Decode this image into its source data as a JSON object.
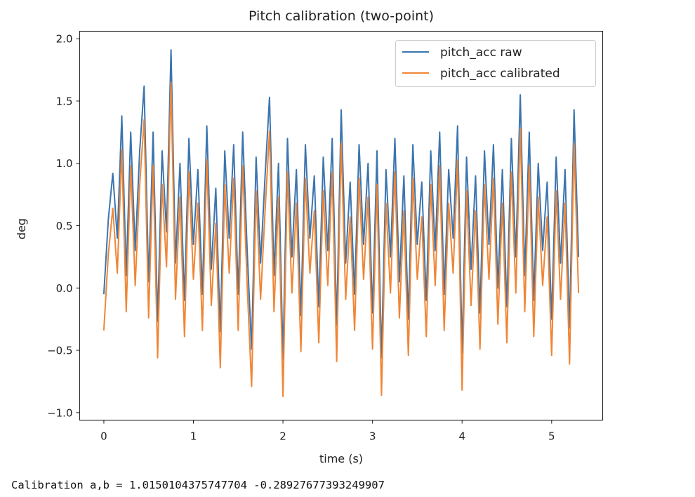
{
  "chart_data": {
    "type": "line",
    "title": "Pitch calibration (two-point)",
    "xlabel": "time (s)",
    "ylabel": "deg",
    "xlim": [
      -0.27,
      5.57
    ],
    "ylim": [
      -1.06,
      2.06
    ],
    "xticks": [
      0,
      1,
      2,
      3,
      4,
      5
    ],
    "xtick_labels": [
      "0",
      "1",
      "2",
      "3",
      "4",
      "5"
    ],
    "yticks": [
      -1.0,
      -0.5,
      0.0,
      0.5,
      1.0,
      1.5,
      2.0
    ],
    "ytick_labels": [
      "−1.0",
      "−0.5",
      "0.0",
      "0.5",
      "1.0",
      "1.5",
      "2.0"
    ],
    "grid": false,
    "legend_position": "top-right",
    "x_start": 0,
    "x_step": 0.05,
    "series": [
      {
        "name": "pitch_acc raw",
        "color": "#3b75af",
        "values": [
          -0.05,
          0.55,
          0.92,
          0.4,
          1.38,
          0.1,
          1.25,
          0.3,
          1.1,
          1.62,
          0.05,
          1.25,
          -0.27,
          1.1,
          0.45,
          1.91,
          0.2,
          1.0,
          -0.1,
          1.2,
          0.35,
          0.95,
          -0.05,
          1.3,
          0.15,
          0.8,
          -0.35,
          1.1,
          0.4,
          1.15,
          -0.05,
          1.25,
          0.3,
          -0.49,
          1.05,
          0.2,
          0.9,
          1.53,
          0.1,
          1.0,
          -0.57,
          1.2,
          0.25,
          0.95,
          -0.22,
          1.15,
          0.4,
          0.9,
          -0.15,
          1.05,
          0.3,
          1.2,
          -0.3,
          1.43,
          0.2,
          0.85,
          -0.05,
          1.15,
          0.35,
          1.0,
          -0.2,
          1.1,
          -0.56,
          0.95,
          0.25,
          1.2,
          0.05,
          0.9,
          -0.25,
          1.15,
          0.35,
          0.85,
          -0.1,
          1.1,
          0.3,
          1.25,
          -0.05,
          0.95,
          0.4,
          1.3,
          -0.52,
          1.05,
          0.15,
          0.9,
          -0.2,
          1.1,
          0.35,
          1.15,
          0.0,
          0.95,
          -0.15,
          1.2,
          0.25,
          1.55,
          0.1,
          1.25,
          -0.1,
          1.0,
          0.3,
          0.85,
          -0.25,
          1.05,
          0.2,
          0.95,
          -0.32,
          1.43,
          0.25
        ]
      },
      {
        "name": "pitch_acc calibrated",
        "color": "#ef8636",
        "values": [
          -0.34,
          0.27,
          0.64,
          0.12,
          1.11,
          -0.19,
          0.98,
          0.02,
          0.83,
          1.35,
          -0.24,
          0.98,
          -0.56,
          0.83,
          0.17,
          1.65,
          -0.09,
          0.73,
          -0.39,
          0.93,
          0.07,
          0.68,
          -0.34,
          1.03,
          -0.14,
          0.52,
          -0.64,
          0.83,
          0.12,
          0.88,
          -0.34,
          0.98,
          0.02,
          -0.79,
          0.78,
          -0.09,
          0.62,
          1.26,
          -0.19,
          0.73,
          -0.87,
          0.93,
          -0.04,
          0.68,
          -0.51,
          0.88,
          0.12,
          0.62,
          -0.44,
          0.78,
          0.02,
          0.93,
          -0.59,
          1.16,
          -0.09,
          0.57,
          -0.34,
          0.88,
          0.07,
          0.73,
          -0.49,
          0.83,
          -0.86,
          0.68,
          -0.04,
          0.93,
          -0.24,
          0.62,
          -0.54,
          0.88,
          0.07,
          0.57,
          -0.39,
          0.83,
          0.02,
          0.98,
          -0.34,
          0.68,
          0.12,
          1.03,
          -0.82,
          0.78,
          -0.14,
          0.62,
          -0.49,
          0.83,
          0.07,
          0.88,
          -0.29,
          0.68,
          -0.44,
          0.93,
          -0.04,
          1.28,
          -0.19,
          0.98,
          -0.39,
          0.73,
          0.02,
          0.57,
          -0.54,
          0.78,
          -0.09,
          0.68,
          -0.61,
          1.16,
          -0.04
        ]
      }
    ]
  },
  "output_text": "Calibration a,b = 1.0150104375747704 -0.28927677393249907"
}
